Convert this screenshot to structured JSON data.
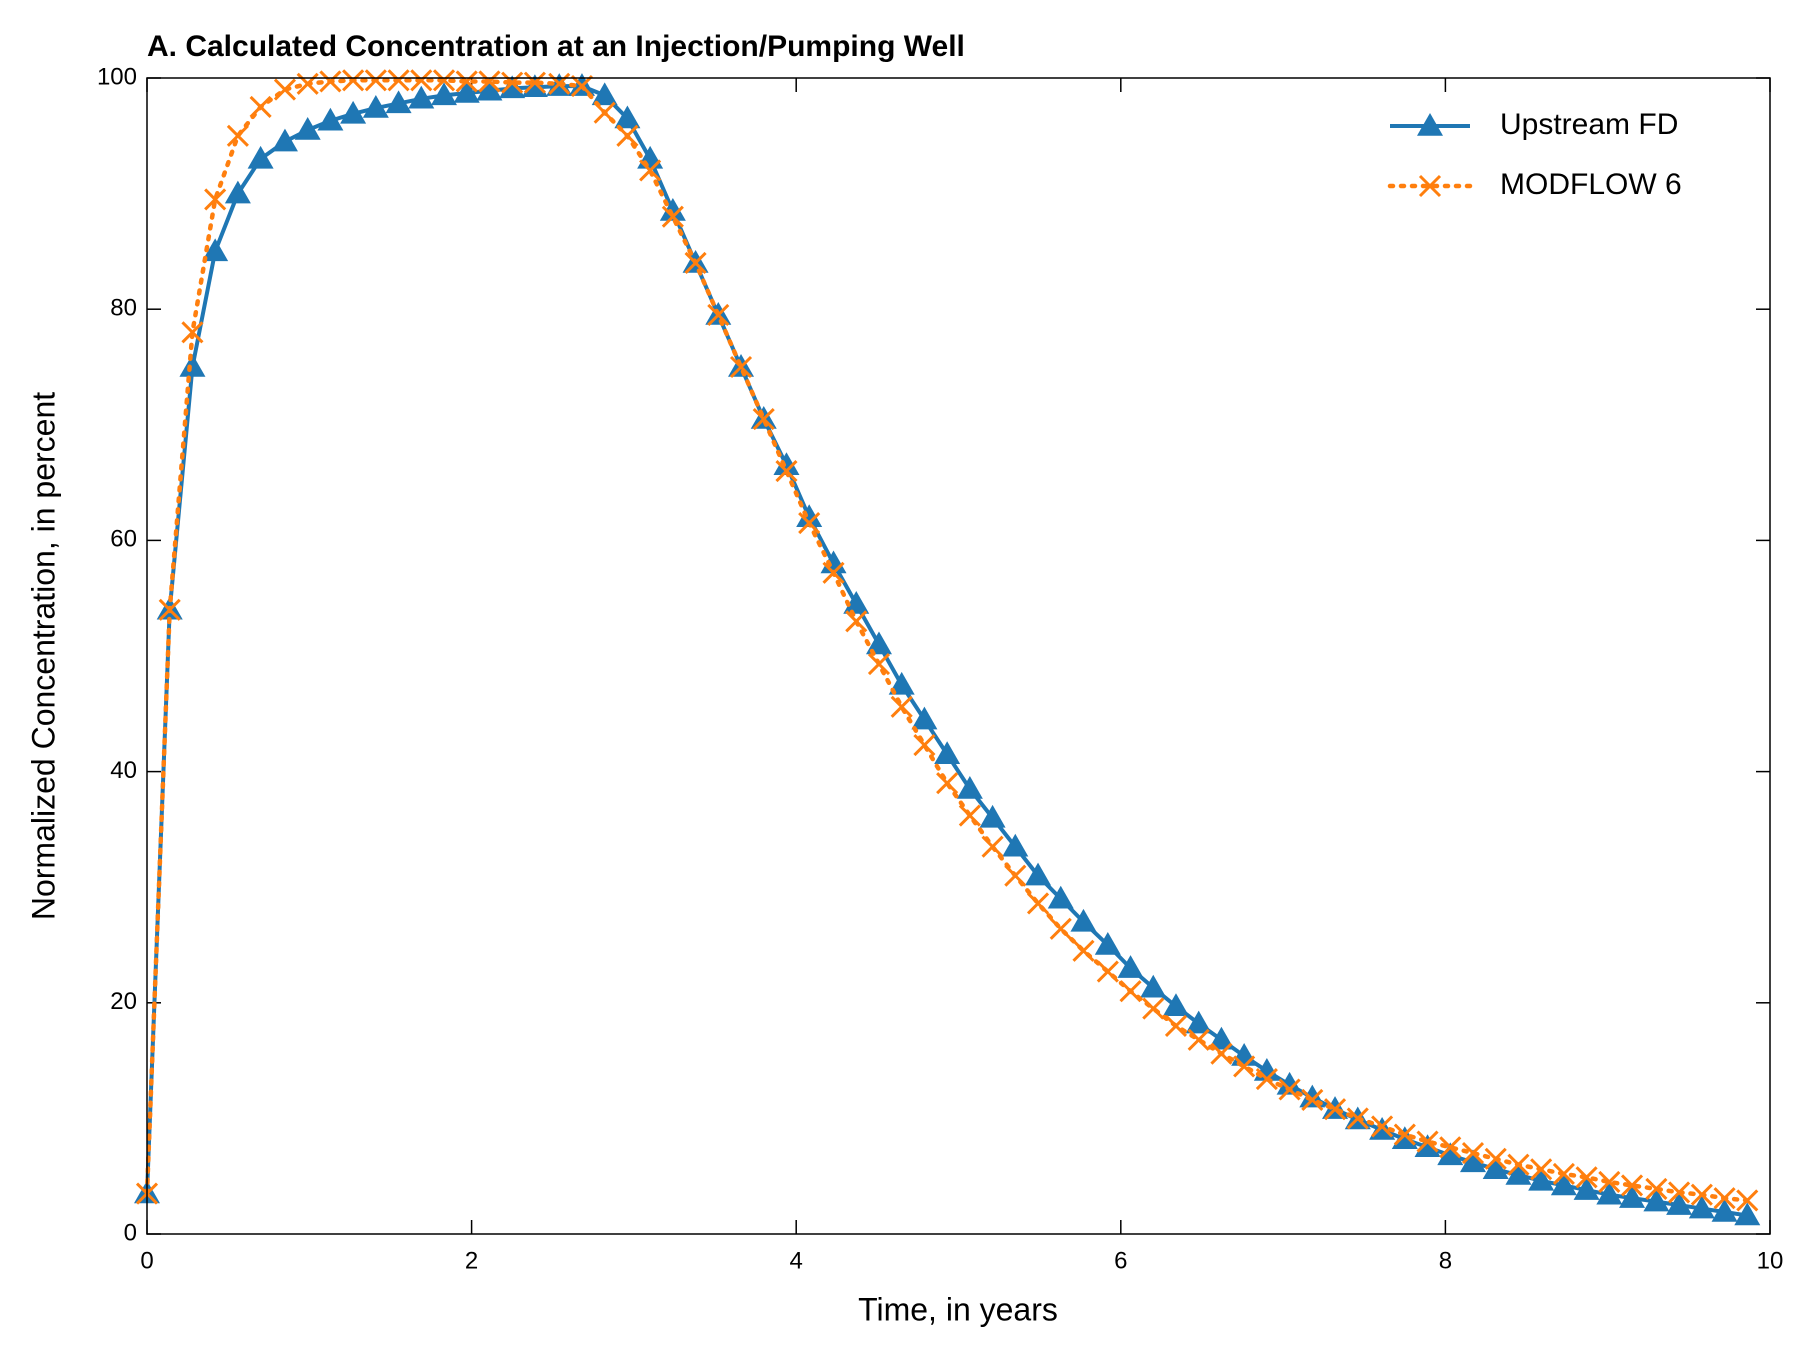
{
  "chart_data": {
    "type": "line",
    "title": "A. Calculated Concentration at an Injection/Pumping Well",
    "xlabel": "Time, in years",
    "ylabel": "Normalized Concentration, in percent",
    "x": [
      0,
      0.14,
      0.28,
      0.42,
      0.56,
      0.7,
      0.85,
      0.99,
      1.13,
      1.27,
      1.41,
      1.55,
      1.69,
      1.83,
      1.97,
      2.11,
      2.25,
      2.39,
      2.54,
      2.68,
      2.82,
      2.96,
      3.1,
      3.24,
      3.38,
      3.52,
      3.66,
      3.8,
      3.94,
      4.08,
      4.23,
      4.37,
      4.51,
      4.65,
      4.79,
      4.93,
      5.07,
      5.21,
      5.35,
      5.49,
      5.63,
      5.77,
      5.92,
      6.06,
      6.2,
      6.34,
      6.48,
      6.62,
      6.76,
      6.9,
      7.04,
      7.18,
      7.32,
      7.46,
      7.61,
      7.75,
      7.89,
      8.03,
      8.17,
      8.31,
      8.45,
      8.59,
      8.73,
      8.87,
      9.01,
      9.15,
      9.3,
      9.44,
      9.58,
      9.72,
      9.86
    ],
    "series": [
      {
        "name": "Upstream FD",
        "color": "#1f77b4",
        "marker": "triangle",
        "dash": "solid",
        "values": [
          3.5,
          54,
          75,
          85,
          90,
          93,
          94.5,
          95.5,
          96.3,
          96.9,
          97.4,
          97.8,
          98.2,
          98.5,
          98.7,
          98.9,
          99.1,
          99.2,
          99.3,
          99.3,
          98.5,
          96.5,
          93,
          88.5,
          84,
          79.5,
          75,
          70.5,
          66.5,
          62,
          58,
          54.5,
          51,
          47.5,
          44.5,
          41.5,
          38.5,
          36,
          33.5,
          31,
          29,
          27,
          25,
          23,
          21.3,
          19.7,
          18.2,
          16.8,
          15.4,
          14.1,
          12.9,
          11.8,
          10.8,
          9.9,
          9,
          8.2,
          7.5,
          6.8,
          6.2,
          5.6,
          5.1,
          4.6,
          4.2,
          3.8,
          3.4,
          3.1,
          2.8,
          2.5,
          2.2,
          1.9,
          1.6
        ]
      },
      {
        "name": "MODFLOW 6",
        "color": "#ff7f0e",
        "marker": "x",
        "dash": "dotted",
        "values": [
          3.5,
          54,
          78,
          89.5,
          95,
          97.5,
          99,
          99.5,
          99.7,
          99.8,
          99.8,
          99.8,
          99.8,
          99.8,
          99.7,
          99.7,
          99.6,
          99.6,
          99.5,
          99.3,
          97,
          95,
          92,
          88,
          84,
          79.5,
          75,
          70.5,
          66,
          61.5,
          57.2,
          53,
          49.3,
          45.6,
          42.3,
          39,
          36.2,
          33.5,
          31,
          28.6,
          26.4,
          24.5,
          22.7,
          21,
          19.5,
          18,
          16.8,
          15.6,
          14.5,
          13.4,
          12.5,
          11.6,
          10.8,
          10,
          9.3,
          8.6,
          8,
          7.5,
          7,
          6.5,
          6,
          5.6,
          5.2,
          4.9,
          4.5,
          4.2,
          3.9,
          3.6,
          3.4,
          3.1,
          2.9
        ]
      }
    ],
    "xlim": [
      0,
      10
    ],
    "xticks": [
      0,
      2,
      4,
      6,
      8,
      10
    ],
    "ylim": [
      0,
      100
    ],
    "yticks": [
      0,
      20,
      40,
      60,
      80,
      100
    ],
    "grid": false,
    "legend": "upper right"
  }
}
